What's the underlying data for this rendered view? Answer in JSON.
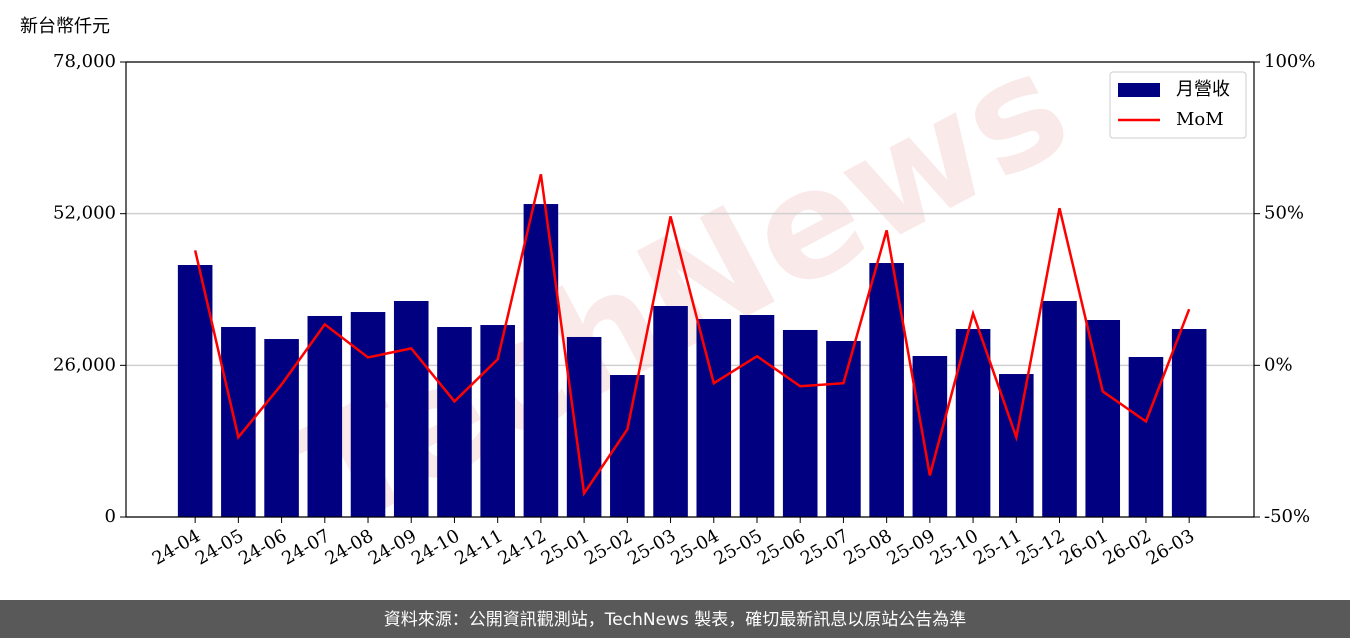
{
  "chart_data": {
    "type": "bar_line",
    "y_label": "新台幣仟元",
    "watermark": "TechNews",
    "footer": "資料來源：公開資訊觀測站，TechNews 製表，確切最新訊息以原站公告為準",
    "categories": [
      "24-04",
      "24-05",
      "24-06",
      "24-07",
      "24-08",
      "24-09",
      "24-10",
      "24-11",
      "24-12",
      "25-01",
      "25-02",
      "25-03",
      "25-04",
      "25-05",
      "25-06",
      "25-07",
      "25-08",
      "25-09",
      "25-10",
      "25-11",
      "25-12",
      "26-01",
      "26-02",
      "26-03"
    ],
    "series": [
      {
        "name": "月營收",
        "type": "bar",
        "color": "#000080",
        "axis": "y",
        "values": [
          43200,
          32570,
          30510,
          34460,
          35140,
          37030,
          32570,
          32910,
          53650,
          30860,
          24340,
          36170,
          33940,
          34630,
          32060,
          30170,
          43540,
          27600,
          32230,
          24510,
          37030,
          33770,
          27430,
          32230
        ]
      },
      {
        "name": "MoM",
        "type": "line",
        "color": "#ff0000",
        "axis": "y2",
        "values": [
          37.9,
          -23.7,
          -6.3,
          13.5,
          2.6,
          5.6,
          -11.9,
          2.0,
          63.0,
          -42.2,
          -21.1,
          49.1,
          -5.9,
          3.0,
          -6.9,
          -5.9,
          44.5,
          -36.3,
          17.1,
          -23.7,
          51.8,
          -8.6,
          -18.5,
          18.5
        ]
      }
    ],
    "ylim": [
      0,
      78000
    ],
    "yticks": [
      0,
      {
        "value": 26000,
        "label": "26,000"
      },
      {
        "value": 52000,
        "label": "52,000"
      },
      {
        "value": 78000,
        "label": "78,000"
      }
    ],
    "y2lim": [
      -50,
      100
    ],
    "y2ticks": [
      {
        "value": -50,
        "label": "-50%"
      },
      {
        "value": 0,
        "label": "0%"
      },
      {
        "value": 50,
        "label": "50%"
      },
      {
        "value": 100,
        "label": "100%"
      }
    ],
    "grid": true,
    "legend": "upper right"
  }
}
